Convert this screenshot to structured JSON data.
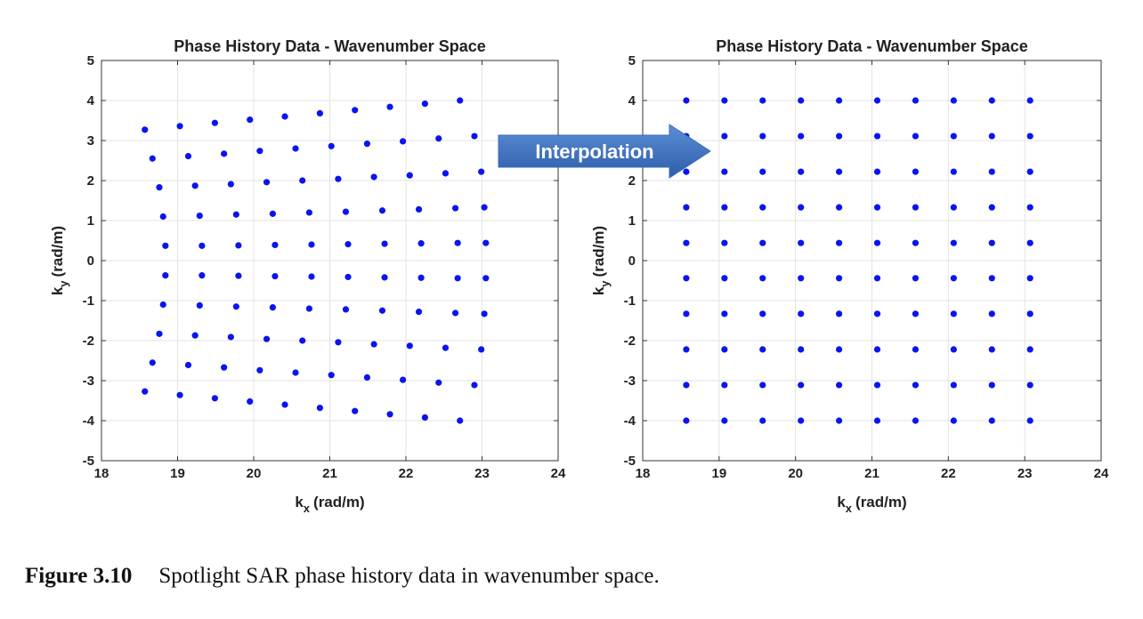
{
  "chart_data": [
    {
      "type": "scatter",
      "title": "Phase History Data - Wavenumber Space",
      "xlabel": "k",
      "xlabel_sub": "x",
      "xlabel_unit": "(rad/m)",
      "ylabel": "k",
      "ylabel_sub": "y",
      "ylabel_unit": "(rad/m)",
      "xlim": [
        18,
        24
      ],
      "ylim": [
        -5,
        5
      ],
      "xticks": [
        "18",
        "19",
        "20",
        "21",
        "22",
        "23",
        "24"
      ],
      "yticks": [
        "5",
        "4",
        "3",
        "2",
        "1",
        "0",
        "-1",
        "-2",
        "-3",
        "-4",
        "-5"
      ],
      "grid": true,
      "color": "#0a14f0",
      "series": [
        {
          "x": [
            18.57,
            19.03,
            19.49,
            19.95,
            20.41,
            20.87,
            21.33,
            21.79,
            22.25,
            22.71
          ],
          "y": [
            3.27,
            3.36,
            3.44,
            3.52,
            3.6,
            3.68,
            3.76,
            3.84,
            3.92,
            4.0
          ]
        },
        {
          "x": [
            18.67,
            19.14,
            19.61,
            20.08,
            20.55,
            21.02,
            21.49,
            21.96,
            22.43,
            22.9
          ],
          "y": [
            2.55,
            2.61,
            2.67,
            2.74,
            2.8,
            2.86,
            2.92,
            2.98,
            3.05,
            3.11
          ]
        },
        {
          "x": [
            18.76,
            19.23,
            19.7,
            20.17,
            20.64,
            21.11,
            21.58,
            22.05,
            22.52,
            22.99
          ],
          "y": [
            1.83,
            1.87,
            1.91,
            1.96,
            2.0,
            2.04,
            2.09,
            2.13,
            2.18,
            2.22
          ]
        },
        {
          "x": [
            18.81,
            19.29,
            19.77,
            20.25,
            20.73,
            21.21,
            21.69,
            22.17,
            22.65,
            23.03
          ],
          "y": [
            1.1,
            1.12,
            1.15,
            1.17,
            1.2,
            1.22,
            1.25,
            1.28,
            1.31,
            1.33
          ]
        },
        {
          "x": [
            18.84,
            19.32,
            19.8,
            20.28,
            20.76,
            21.24,
            21.72,
            22.2,
            22.68,
            23.05
          ],
          "y": [
            0.37,
            0.37,
            0.38,
            0.39,
            0.4,
            0.41,
            0.42,
            0.43,
            0.44,
            0.44
          ]
        },
        {
          "x": [
            18.84,
            19.32,
            19.8,
            20.28,
            20.76,
            21.24,
            21.72,
            22.2,
            22.68,
            23.05
          ],
          "y": [
            -0.37,
            -0.37,
            -0.38,
            -0.39,
            -0.4,
            -0.41,
            -0.42,
            -0.43,
            -0.44,
            -0.44
          ]
        },
        {
          "x": [
            18.81,
            19.29,
            19.77,
            20.25,
            20.73,
            21.21,
            21.69,
            22.17,
            22.65,
            23.03
          ],
          "y": [
            -1.1,
            -1.12,
            -1.15,
            -1.17,
            -1.2,
            -1.22,
            -1.25,
            -1.28,
            -1.31,
            -1.33
          ]
        },
        {
          "x": [
            18.76,
            19.23,
            19.7,
            20.17,
            20.64,
            21.11,
            21.58,
            22.05,
            22.52,
            22.99
          ],
          "y": [
            -1.83,
            -1.87,
            -1.91,
            -1.96,
            -2.0,
            -2.04,
            -2.09,
            -2.13,
            -2.18,
            -2.22
          ]
        },
        {
          "x": [
            18.67,
            19.14,
            19.61,
            20.08,
            20.55,
            21.02,
            21.49,
            21.96,
            22.43,
            22.9
          ],
          "y": [
            -2.55,
            -2.61,
            -2.67,
            -2.74,
            -2.8,
            -2.86,
            -2.92,
            -2.98,
            -3.05,
            -3.11
          ]
        },
        {
          "x": [
            18.57,
            19.03,
            19.49,
            19.95,
            20.41,
            20.87,
            21.33,
            21.79,
            22.25,
            22.71
          ],
          "y": [
            -3.27,
            -3.36,
            -3.44,
            -3.52,
            -3.6,
            -3.68,
            -3.76,
            -3.84,
            -3.92,
            -4.0
          ]
        }
      ]
    },
    {
      "type": "scatter",
      "title": "Phase History Data - Wavenumber Space",
      "xlabel": "k",
      "xlabel_sub": "x",
      "xlabel_unit": "(rad/m)",
      "ylabel": "k",
      "ylabel_sub": "y",
      "ylabel_unit": "(rad/m)",
      "xlim": [
        18,
        24
      ],
      "ylim": [
        -5,
        5
      ],
      "xticks": [
        "18",
        "19",
        "20",
        "21",
        "22",
        "23",
        "24"
      ],
      "yticks": [
        "5",
        "4",
        "3",
        "2",
        "1",
        "0",
        "-1",
        "-2",
        "-3",
        "-4",
        "-5"
      ],
      "grid": true,
      "color": "#0a14f0",
      "grid_x": [
        18.57,
        19.07,
        19.57,
        20.07,
        20.57,
        21.07,
        21.57,
        22.07,
        22.57,
        23.07
      ],
      "grid_y": [
        4.0,
        3.11,
        2.22,
        1.33,
        0.44,
        -0.44,
        -1.33,
        -2.22,
        -3.11,
        -4.0
      ]
    }
  ],
  "arrow": {
    "label": "Interpolation",
    "color_top": "#5b8fd6",
    "color_bottom": "#2e5da8"
  },
  "caption": {
    "number": "Figure 3.10",
    "text": "Spotlight SAR phase history data in wavenumber space."
  }
}
